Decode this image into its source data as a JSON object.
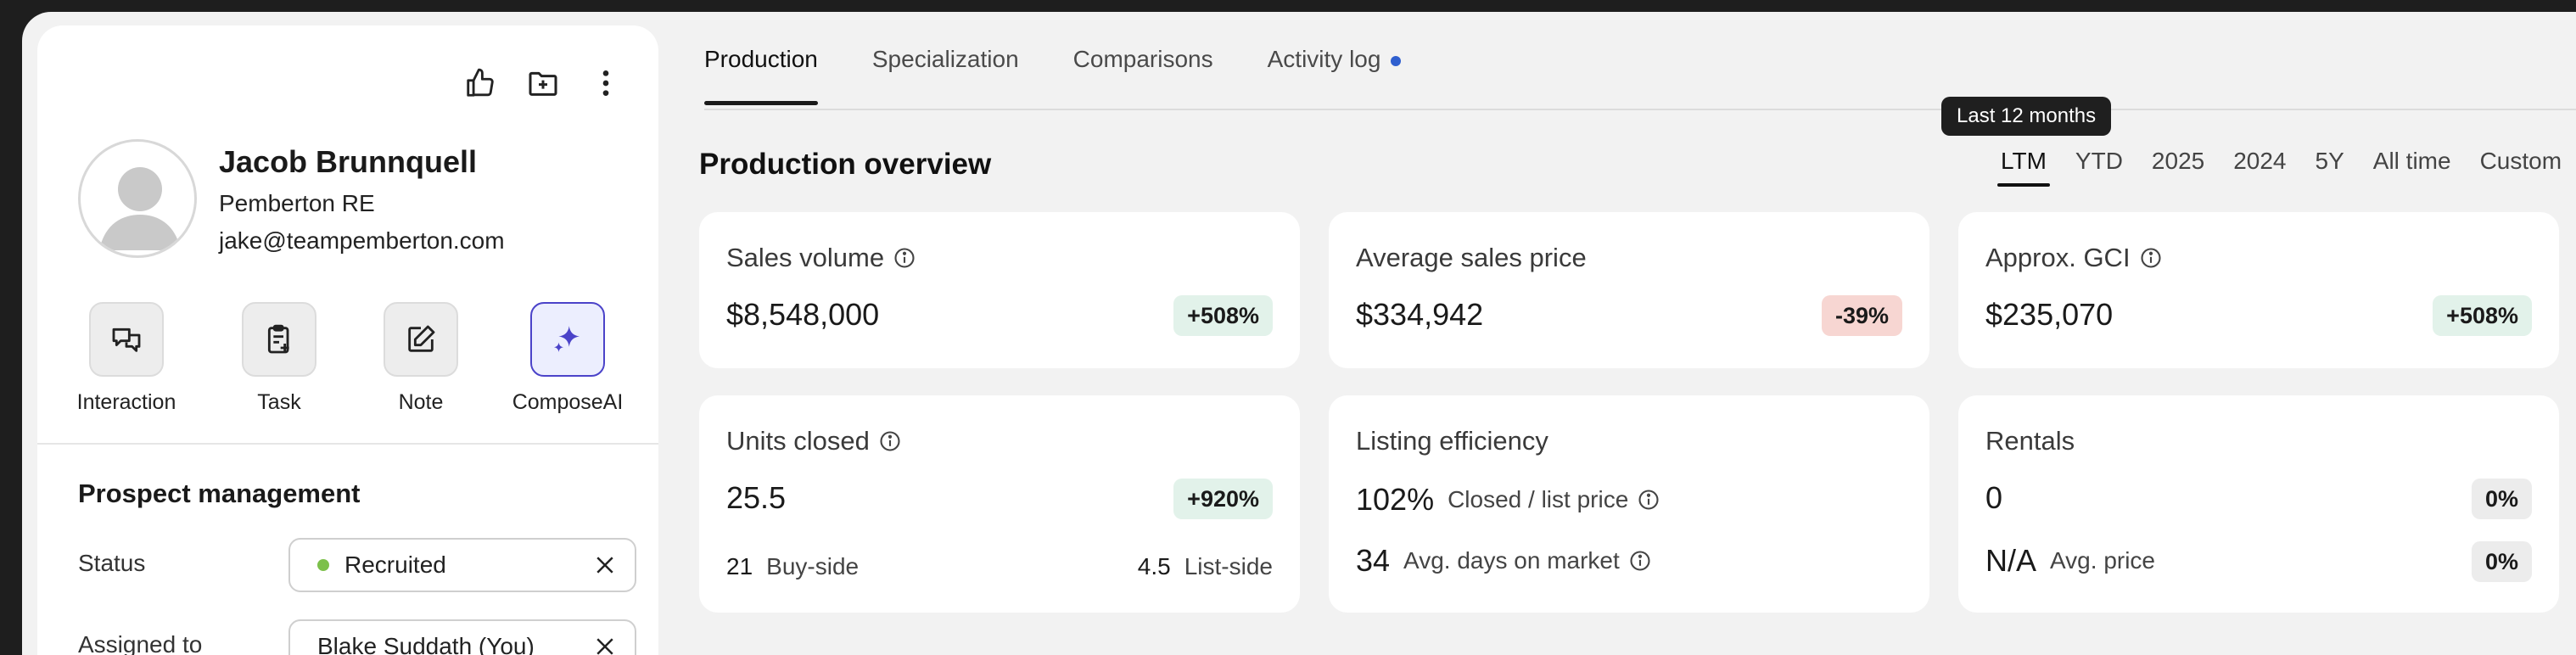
{
  "contact": {
    "name": "Jacob Brunnquell",
    "company": "Pemberton RE",
    "email": "jake@teampemberton.com"
  },
  "quick_actions": [
    {
      "label": "Interaction",
      "icon": "interaction-icon"
    },
    {
      "label": "Task",
      "icon": "task-icon"
    },
    {
      "label": "Note",
      "icon": "note-icon"
    },
    {
      "label": "ComposeAI",
      "icon": "sparkle-icon"
    }
  ],
  "prospect": {
    "title": "Prospect management",
    "status_label": "Status",
    "status_value": "Recruited",
    "assigned_label": "Assigned to",
    "assigned_value": "Blake Suddath (You)"
  },
  "tabs": [
    {
      "label": "Production",
      "active": true
    },
    {
      "label": "Specialization"
    },
    {
      "label": "Comparisons"
    },
    {
      "label": "Activity log",
      "dot": true
    }
  ],
  "overview": {
    "title": "Production overview",
    "tooltip": "Last 12 months",
    "periods": [
      "LTM",
      "YTD",
      "2025",
      "2024",
      "5Y",
      "All time",
      "Custom"
    ],
    "active_period": "LTM"
  },
  "cards": {
    "sales_volume": {
      "title": "Sales volume",
      "value": "$8,548,000",
      "change": "+508%"
    },
    "avg_price": {
      "title": "Average sales price",
      "value": "$334,942",
      "change": "-39%"
    },
    "gci": {
      "title": "Approx. GCI",
      "value": "$235,070",
      "change": "+508%"
    },
    "units": {
      "title": "Units closed",
      "value": "25.5",
      "change": "+920%",
      "buy_num": "21",
      "buy_label": "Buy-side",
      "list_num": "4.5",
      "list_label": "List-side"
    },
    "efficiency": {
      "title": "Listing efficiency",
      "ratio": "102%",
      "ratio_label": "Closed / list price",
      "dom": "34",
      "dom_label": "Avg. days on market"
    },
    "rentals": {
      "title": "Rentals",
      "value": "0",
      "change": "0%",
      "avg_value": "N/A",
      "avg_label": "Avg. price",
      "avg_change": "0%"
    }
  },
  "colors": {
    "accent": "#2f5fcf",
    "positive_bg": "#e2f2ea",
    "negative_bg": "#f7d6d2",
    "status_dot": "#7cc04a"
  }
}
